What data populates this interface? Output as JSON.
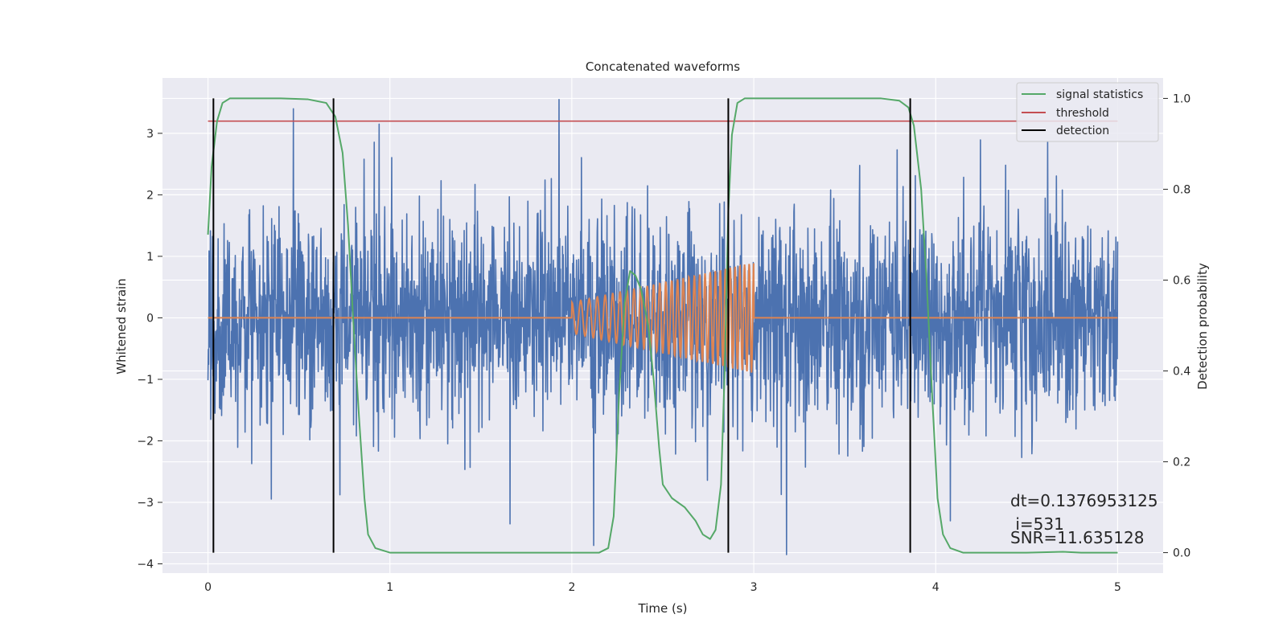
{
  "chart_data": {
    "type": "line",
    "title": "Concatenated waveforms",
    "xlabel": "Time (s)",
    "ylabel_left": "Whitened strain",
    "ylabel_right": "Detection probability",
    "xlim": [
      -0.25,
      5.25
    ],
    "ylim_left": [
      -4.15,
      3.9
    ],
    "ylim_right": [
      -0.045,
      1.045
    ],
    "xticks": [
      0,
      1,
      2,
      3,
      4,
      5
    ],
    "yticks_left": [
      -4,
      -3,
      -2,
      -1,
      0,
      1,
      2,
      3
    ],
    "yticks_right": [
      0.0,
      0.2,
      0.4,
      0.6,
      0.8,
      1.0
    ],
    "xtick_labels": [
      "0",
      "1",
      "2",
      "3",
      "4",
      "5"
    ],
    "ytick_labels_left": [
      "−4",
      "−3",
      "−2",
      "−1",
      "0",
      "1",
      "2",
      "3"
    ],
    "ytick_labels_right": [
      "0.0",
      "0.2",
      "0.4",
      "0.6",
      "0.8",
      "1.0"
    ],
    "grid": true,
    "legend_position": "top-right",
    "series": [
      {
        "kind": "noise",
        "axis": "left",
        "color": "#4c72b0",
        "x_range": [
          0,
          5
        ],
        "std": 0.85,
        "peaks": [
          [
            0.47,
            3.4
          ],
          [
            1.93,
            3.55
          ],
          [
            3.18,
            -3.85
          ],
          [
            2.12,
            -3.7
          ],
          [
            1.66,
            -3.35
          ],
          [
            4.08,
            -3.3
          ]
        ]
      },
      {
        "kind": "chirp",
        "axis": "left",
        "color": "#dd8452",
        "x_range": [
          0,
          5
        ],
        "chirp_start": 2.0,
        "chirp_end": 3.0,
        "amp_start": 0.25,
        "amp_end": 0.9,
        "f_start": 20,
        "f_end": 40
      },
      {
        "name": "signal statistics",
        "axis": "right",
        "color": "#55a868",
        "x": [
          0,
          0.02,
          0.05,
          0.08,
          0.12,
          0.2,
          0.4,
          0.55,
          0.65,
          0.7,
          0.74,
          0.77,
          0.8,
          0.83,
          0.86,
          0.88,
          0.92,
          1.0,
          1.5,
          2.15,
          2.2,
          2.23,
          2.26,
          2.29,
          2.32,
          2.35,
          2.38,
          2.42,
          2.45,
          2.48,
          2.5,
          2.55,
          2.62,
          2.68,
          2.72,
          2.76,
          2.79,
          2.82,
          2.84,
          2.86,
          2.88,
          2.91,
          2.95,
          3.0,
          3.2,
          3.5,
          3.7,
          3.8,
          3.85,
          3.88,
          3.92,
          3.95,
          3.98,
          4.01,
          4.04,
          4.08,
          4.15,
          4.5,
          4.7,
          4.8,
          5.0
        ],
        "y": [
          0.7,
          0.85,
          0.95,
          0.99,
          1.0,
          1.0,
          1.0,
          0.998,
          0.99,
          0.96,
          0.88,
          0.72,
          0.5,
          0.3,
          0.12,
          0.04,
          0.01,
          0.0,
          0.0,
          0.0,
          0.01,
          0.08,
          0.35,
          0.55,
          0.62,
          0.61,
          0.58,
          0.5,
          0.38,
          0.23,
          0.15,
          0.12,
          0.1,
          0.07,
          0.04,
          0.03,
          0.05,
          0.15,
          0.4,
          0.75,
          0.92,
          0.99,
          1.0,
          1.0,
          1.0,
          1.0,
          1.0,
          0.995,
          0.98,
          0.94,
          0.8,
          0.6,
          0.35,
          0.12,
          0.04,
          0.01,
          0.0,
          0.0,
          0.002,
          0.0,
          0.0
        ]
      },
      {
        "name": "threshold",
        "axis": "right",
        "color": "#c44e52",
        "x": [
          0,
          5
        ],
        "y": [
          0.95,
          0.95
        ]
      },
      {
        "name": "detection",
        "axis": "right",
        "color": "#000000",
        "vlines": [
          0.03,
          0.69,
          2.86,
          3.86
        ],
        "vline_range": [
          0.0,
          1.0
        ]
      }
    ],
    "legend": [
      "signal statistics",
      "threshold",
      "detection"
    ],
    "annotations": [
      {
        "text": "dt=0.1376953125",
        "x": 4.5,
        "y": 0.11
      },
      {
        "text": " i=531",
        "x": 4.5,
        "y": 0.06
      },
      {
        "text": "SNR=11.635128",
        "x": 4.5,
        "y": 0.03
      }
    ]
  }
}
